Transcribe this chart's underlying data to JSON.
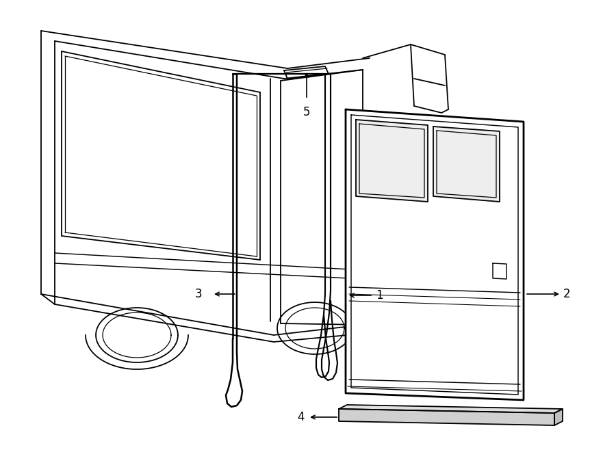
{
  "bg_color": "#ffffff",
  "line_color": "#000000",
  "lw": 1.3,
  "lw_thick": 2.0,
  "fig_width": 9.0,
  "fig_height": 6.61,
  "dpi": 100
}
